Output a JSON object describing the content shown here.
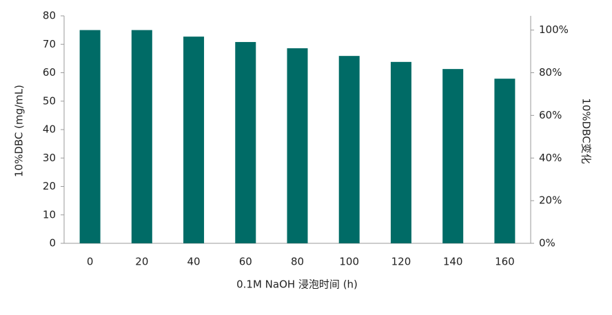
{
  "chart_data": {
    "type": "bar",
    "x_label": "0.1M NaOH 浸泡时间 (h)",
    "y_label": "10%DBC (mg/mL)",
    "y2_label": "10%DBC变化",
    "categories": [
      "0",
      "20",
      "40",
      "60",
      "80",
      "100",
      "120",
      "140",
      "160"
    ],
    "values": [
      75,
      75,
      72.7,
      70.8,
      68.6,
      65.9,
      63.8,
      61.3,
      57.9
    ],
    "color": "#006b66",
    "ylim": [
      0,
      80
    ],
    "yticks": [
      0,
      10,
      20,
      30,
      40,
      50,
      60,
      70,
      80
    ],
    "y2lim": [
      0,
      106.67
    ],
    "y2ticks": [
      {
        "value": 0,
        "label": "0%"
      },
      {
        "value": 20,
        "label": "20%"
      },
      {
        "value": 40,
        "label": "40%"
      },
      {
        "value": 60,
        "label": "60%"
      },
      {
        "value": 80,
        "label": "80%"
      },
      {
        "value": 100,
        "label": "100%"
      }
    ],
    "grid": false
  }
}
